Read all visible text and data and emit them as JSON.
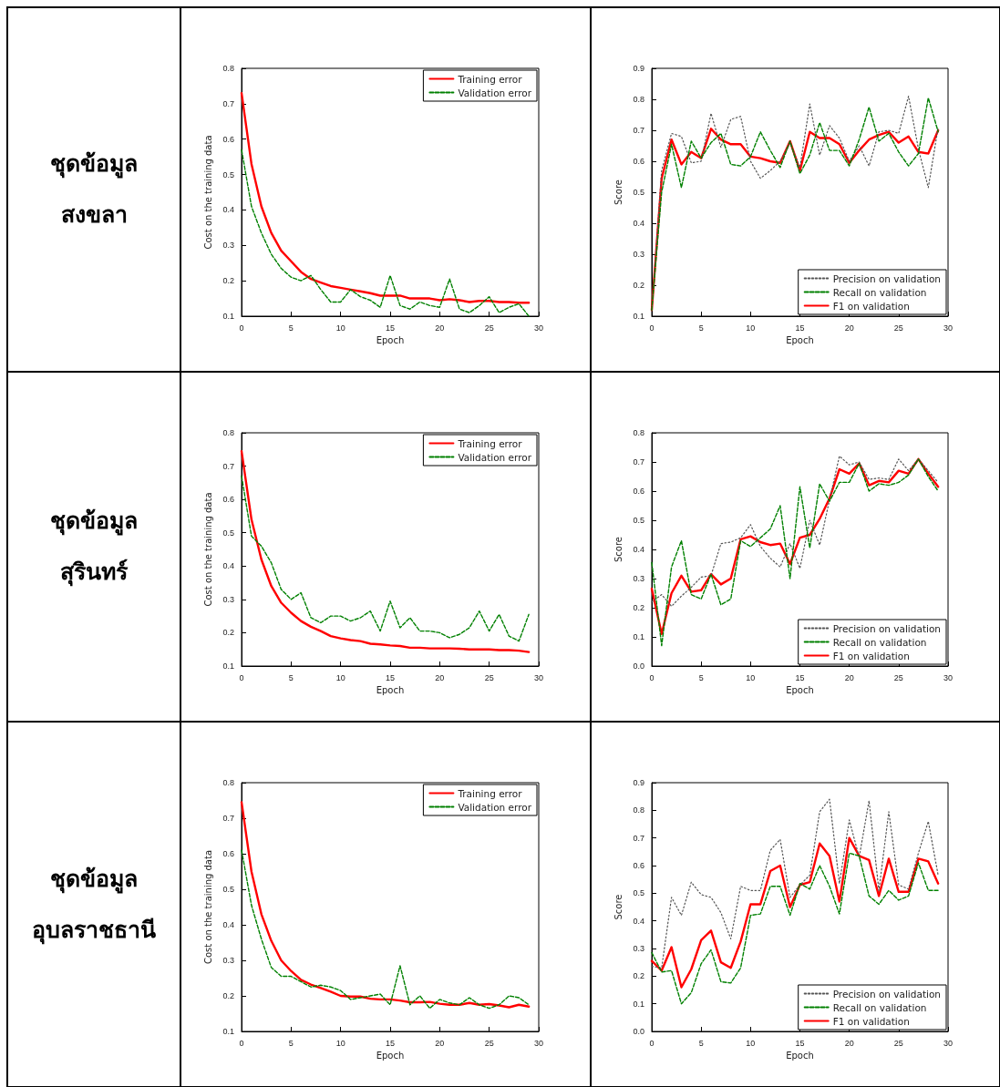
{
  "chart_data": [
    {
      "type": "other",
      "title": "ชุดข้อมูล สงขลา"
    },
    {
      "type": "line",
      "xlabel": "Epoch",
      "ylabel": "Cost on the training data",
      "legend": "top right",
      "xlim": [
        0,
        30
      ],
      "xticks": [
        0,
        5,
        10,
        15,
        20,
        25,
        30
      ],
      "ylim": [
        0.1,
        0.8
      ],
      "yticks": [
        0.1,
        0.2,
        0.3,
        0.4,
        0.5,
        0.6,
        0.7,
        0.8
      ],
      "x": [
        0,
        1,
        2,
        3,
        4,
        5,
        6,
        7,
        8,
        9,
        10,
        11,
        12,
        13,
        14,
        15,
        16,
        17,
        18,
        19,
        20,
        21,
        22,
        23,
        24,
        25,
        26,
        27,
        28,
        29
      ],
      "series": [
        {
          "name": "Training error",
          "color": "#ff0000",
          "line_style": "solid",
          "values": [
            0.73,
            0.53,
            0.41,
            0.335,
            0.285,
            0.255,
            0.225,
            0.205,
            0.195,
            0.185,
            0.18,
            0.175,
            0.17,
            0.165,
            0.158,
            0.158,
            0.158,
            0.15,
            0.15,
            0.15,
            0.145,
            0.148,
            0.145,
            0.14,
            0.143,
            0.143,
            0.14,
            0.14,
            0.138,
            0.138
          ]
        },
        {
          "name": "Validation error",
          "color": "#008000",
          "line_style": "dashed",
          "values": [
            0.57,
            0.41,
            0.335,
            0.275,
            0.235,
            0.21,
            0.2,
            0.215,
            0.175,
            0.14,
            0.14,
            0.175,
            0.155,
            0.145,
            0.125,
            0.215,
            0.13,
            0.12,
            0.14,
            0.13,
            0.125,
            0.205,
            0.12,
            0.11,
            0.13,
            0.155,
            0.11,
            0.125,
            0.135,
            0.1
          ]
        }
      ]
    },
    {
      "type": "line",
      "xlabel": "Epoch",
      "ylabel": "Score",
      "legend": "bottom right",
      "xlim": [
        0,
        30
      ],
      "xticks": [
        0,
        5,
        10,
        15,
        20,
        25,
        30
      ],
      "ylim": [
        0.1,
        0.9
      ],
      "yticks": [
        0.1,
        0.2,
        0.3,
        0.4,
        0.5,
        0.6,
        0.7,
        0.8,
        0.9
      ],
      "x": [
        0,
        1,
        2,
        3,
        4,
        5,
        6,
        7,
        8,
        9,
        10,
        11,
        12,
        13,
        14,
        15,
        16,
        17,
        18,
        19,
        20,
        21,
        22,
        23,
        24,
        25,
        26,
        27,
        28,
        29
      ],
      "series": [
        {
          "name": "Precision on validation",
          "color": "#555555",
          "line_style": "dotted",
          "values": [
            0.12,
            0.57,
            0.69,
            0.68,
            0.595,
            0.6,
            0.755,
            0.645,
            0.735,
            0.745,
            0.6,
            0.545,
            0.57,
            0.6,
            0.66,
            0.58,
            0.785,
            0.62,
            0.715,
            0.675,
            0.6,
            0.65,
            0.585,
            0.695,
            0.7,
            0.69,
            0.81,
            0.64,
            0.515,
            0.71
          ]
        },
        {
          "name": "Recall on validation",
          "color": "#008000",
          "line_style": "dashed",
          "values": [
            0.12,
            0.5,
            0.655,
            0.515,
            0.665,
            0.61,
            0.66,
            0.69,
            0.59,
            0.585,
            0.615,
            0.695,
            0.635,
            0.58,
            0.665,
            0.56,
            0.62,
            0.725,
            0.635,
            0.635,
            0.585,
            0.67,
            0.775,
            0.665,
            0.69,
            0.63,
            0.585,
            0.625,
            0.805,
            0.695
          ]
        },
        {
          "name": "F1 on validation",
          "color": "#ff0000",
          "line_style": "solid",
          "values": [
            0.12,
            0.545,
            0.67,
            0.59,
            0.63,
            0.61,
            0.705,
            0.67,
            0.655,
            0.655,
            0.615,
            0.61,
            0.6,
            0.595,
            0.665,
            0.57,
            0.695,
            0.675,
            0.675,
            0.655,
            0.595,
            0.635,
            0.67,
            0.685,
            0.695,
            0.66,
            0.68,
            0.63,
            0.625,
            0.7
          ]
        }
      ]
    },
    {
      "type": "other",
      "title": "ชุดข้อมูล สุรินทร์"
    },
    {
      "type": "line",
      "xlabel": "Epoch",
      "ylabel": "Cost on the training data",
      "legend": "top right",
      "xlim": [
        0,
        30
      ],
      "xticks": [
        0,
        5,
        10,
        15,
        20,
        25,
        30
      ],
      "ylim": [
        0.1,
        0.8
      ],
      "yticks": [
        0.1,
        0.2,
        0.3,
        0.4,
        0.5,
        0.6,
        0.7,
        0.8
      ],
      "x": [
        0,
        1,
        2,
        3,
        4,
        5,
        6,
        7,
        8,
        9,
        10,
        11,
        12,
        13,
        14,
        15,
        16,
        17,
        18,
        19,
        20,
        21,
        22,
        23,
        24,
        25,
        26,
        27,
        28,
        29
      ],
      "series": [
        {
          "name": "Training error",
          "color": "#ff0000",
          "line_style": "solid",
          "values": [
            0.745,
            0.54,
            0.42,
            0.34,
            0.29,
            0.26,
            0.235,
            0.218,
            0.205,
            0.19,
            0.183,
            0.178,
            0.175,
            0.167,
            0.165,
            0.162,
            0.16,
            0.155,
            0.155,
            0.153,
            0.153,
            0.153,
            0.152,
            0.15,
            0.15,
            0.15,
            0.148,
            0.148,
            0.146,
            0.142
          ]
        },
        {
          "name": "Validation error",
          "color": "#008000",
          "line_style": "dashed",
          "values": [
            0.67,
            0.49,
            0.46,
            0.41,
            0.33,
            0.3,
            0.32,
            0.245,
            0.23,
            0.25,
            0.25,
            0.235,
            0.245,
            0.265,
            0.205,
            0.295,
            0.215,
            0.245,
            0.205,
            0.205,
            0.2,
            0.185,
            0.195,
            0.215,
            0.265,
            0.205,
            0.255,
            0.19,
            0.175,
            0.255
          ]
        }
      ]
    },
    {
      "type": "line",
      "xlabel": "Epoch",
      "ylabel": "Score",
      "legend": "bottom right",
      "xlim": [
        0,
        30
      ],
      "xticks": [
        0,
        5,
        10,
        15,
        20,
        25,
        30
      ],
      "ylim": [
        0,
        0.8
      ],
      "yticks": [
        {
          "value": 0,
          "label": "0.0"
        },
        0.1,
        0.2,
        0.3,
        0.4,
        0.5,
        0.6,
        0.7,
        0.8
      ],
      "x": [
        0,
        1,
        2,
        3,
        4,
        5,
        6,
        7,
        8,
        9,
        10,
        11,
        12,
        13,
        14,
        15,
        16,
        17,
        18,
        19,
        20,
        21,
        22,
        23,
        24,
        25,
        26,
        27,
        28,
        29
      ],
      "series": [
        {
          "name": "Precision on validation",
          "color": "#555555",
          "line_style": "dotted",
          "values": [
            0.22,
            0.245,
            0.205,
            0.24,
            0.27,
            0.305,
            0.31,
            0.42,
            0.425,
            0.44,
            0.485,
            0.41,
            0.37,
            0.34,
            0.42,
            0.335,
            0.5,
            0.415,
            0.57,
            0.72,
            0.69,
            0.7,
            0.64,
            0.645,
            0.64,
            0.71,
            0.67,
            0.71,
            0.67,
            0.63
          ]
        },
        {
          "name": "Recall on validation",
          "color": "#008000",
          "line_style": "dashed",
          "values": [
            0.355,
            0.07,
            0.34,
            0.43,
            0.245,
            0.23,
            0.315,
            0.21,
            0.23,
            0.43,
            0.41,
            0.44,
            0.47,
            0.55,
            0.3,
            0.615,
            0.405,
            0.625,
            0.565,
            0.63,
            0.63,
            0.695,
            0.6,
            0.625,
            0.62,
            0.63,
            0.655,
            0.71,
            0.65,
            0.6
          ]
        },
        {
          "name": "F1 on validation",
          "color": "#ff0000",
          "line_style": "solid",
          "values": [
            0.265,
            0.11,
            0.25,
            0.31,
            0.255,
            0.26,
            0.315,
            0.28,
            0.3,
            0.435,
            0.445,
            0.425,
            0.415,
            0.42,
            0.35,
            0.44,
            0.45,
            0.505,
            0.575,
            0.675,
            0.66,
            0.695,
            0.62,
            0.635,
            0.63,
            0.67,
            0.66,
            0.71,
            0.66,
            0.615
          ]
        }
      ]
    },
    {
      "type": "other",
      "title": "ชุดข้อมูล อุบลราชธานี"
    },
    {
      "type": "line",
      "xlabel": "Epoch",
      "ylabel": "Cost on the training data",
      "legend": "top right",
      "xlim": [
        0,
        30
      ],
      "xticks": [
        0,
        5,
        10,
        15,
        20,
        25,
        30
      ],
      "ylim": [
        0.1,
        0.8
      ],
      "yticks": [
        0.1,
        0.2,
        0.3,
        0.4,
        0.5,
        0.6,
        0.7,
        0.8
      ],
      "x": [
        0,
        1,
        2,
        3,
        4,
        5,
        6,
        7,
        8,
        9,
        10,
        11,
        12,
        13,
        14,
        15,
        16,
        17,
        18,
        19,
        20,
        21,
        22,
        23,
        24,
        25,
        26,
        27,
        28,
        29
      ],
      "series": [
        {
          "name": "Training error",
          "color": "#ff0000",
          "line_style": "solid",
          "values": [
            0.745,
            0.55,
            0.43,
            0.355,
            0.3,
            0.27,
            0.245,
            0.232,
            0.222,
            0.212,
            0.2,
            0.198,
            0.198,
            0.192,
            0.19,
            0.19,
            0.187,
            0.182,
            0.182,
            0.183,
            0.178,
            0.175,
            0.175,
            0.18,
            0.175,
            0.177,
            0.173,
            0.168,
            0.175,
            0.17
          ]
        },
        {
          "name": "Validation error",
          "color": "#008000",
          "line_style": "dashed",
          "values": [
            0.61,
            0.455,
            0.36,
            0.28,
            0.255,
            0.255,
            0.24,
            0.225,
            0.23,
            0.225,
            0.215,
            0.19,
            0.195,
            0.2,
            0.205,
            0.175,
            0.285,
            0.175,
            0.2,
            0.165,
            0.19,
            0.18,
            0.175,
            0.195,
            0.175,
            0.165,
            0.175,
            0.2,
            0.195,
            0.175
          ]
        }
      ]
    },
    {
      "type": "line",
      "xlabel": "Epoch",
      "ylabel": "Score",
      "legend": "bottom right",
      "xlim": [
        0,
        30
      ],
      "xticks": [
        0,
        5,
        10,
        15,
        20,
        25,
        30
      ],
      "ylim": [
        0,
        0.9
      ],
      "yticks": [
        {
          "value": 0,
          "label": "0.0"
        },
        0.1,
        0.2,
        0.3,
        0.4,
        0.5,
        0.6,
        0.7,
        0.8,
        0.9
      ],
      "x": [
        0,
        1,
        2,
        3,
        4,
        5,
        6,
        7,
        8,
        9,
        10,
        11,
        12,
        13,
        14,
        15,
        16,
        17,
        18,
        19,
        20,
        21,
        22,
        23,
        24,
        25,
        26,
        27,
        28,
        29
      ],
      "series": [
        {
          "name": "Precision on validation",
          "color": "#555555",
          "line_style": "dotted",
          "values": [
            0.235,
            0.23,
            0.485,
            0.42,
            0.54,
            0.495,
            0.485,
            0.43,
            0.335,
            0.525,
            0.51,
            0.51,
            0.655,
            0.695,
            0.485,
            0.53,
            0.565,
            0.795,
            0.84,
            0.535,
            0.765,
            0.63,
            0.835,
            0.51,
            0.795,
            0.53,
            0.515,
            0.645,
            0.76,
            0.565
          ]
        },
        {
          "name": "Recall on validation",
          "color": "#008000",
          "line_style": "dashed",
          "values": [
            0.285,
            0.215,
            0.22,
            0.1,
            0.14,
            0.245,
            0.295,
            0.18,
            0.175,
            0.23,
            0.42,
            0.425,
            0.525,
            0.525,
            0.42,
            0.535,
            0.515,
            0.6,
            0.525,
            0.425,
            0.645,
            0.635,
            0.49,
            0.46,
            0.51,
            0.475,
            0.49,
            0.61,
            0.51,
            0.51
          ]
        },
        {
          "name": "F1 on validation",
          "color": "#ff0000",
          "line_style": "solid",
          "values": [
            0.255,
            0.22,
            0.305,
            0.16,
            0.225,
            0.33,
            0.365,
            0.25,
            0.23,
            0.325,
            0.46,
            0.46,
            0.58,
            0.6,
            0.45,
            0.53,
            0.54,
            0.68,
            0.635,
            0.47,
            0.7,
            0.635,
            0.62,
            0.49,
            0.625,
            0.505,
            0.505,
            0.625,
            0.615,
            0.535
          ]
        }
      ]
    }
  ]
}
